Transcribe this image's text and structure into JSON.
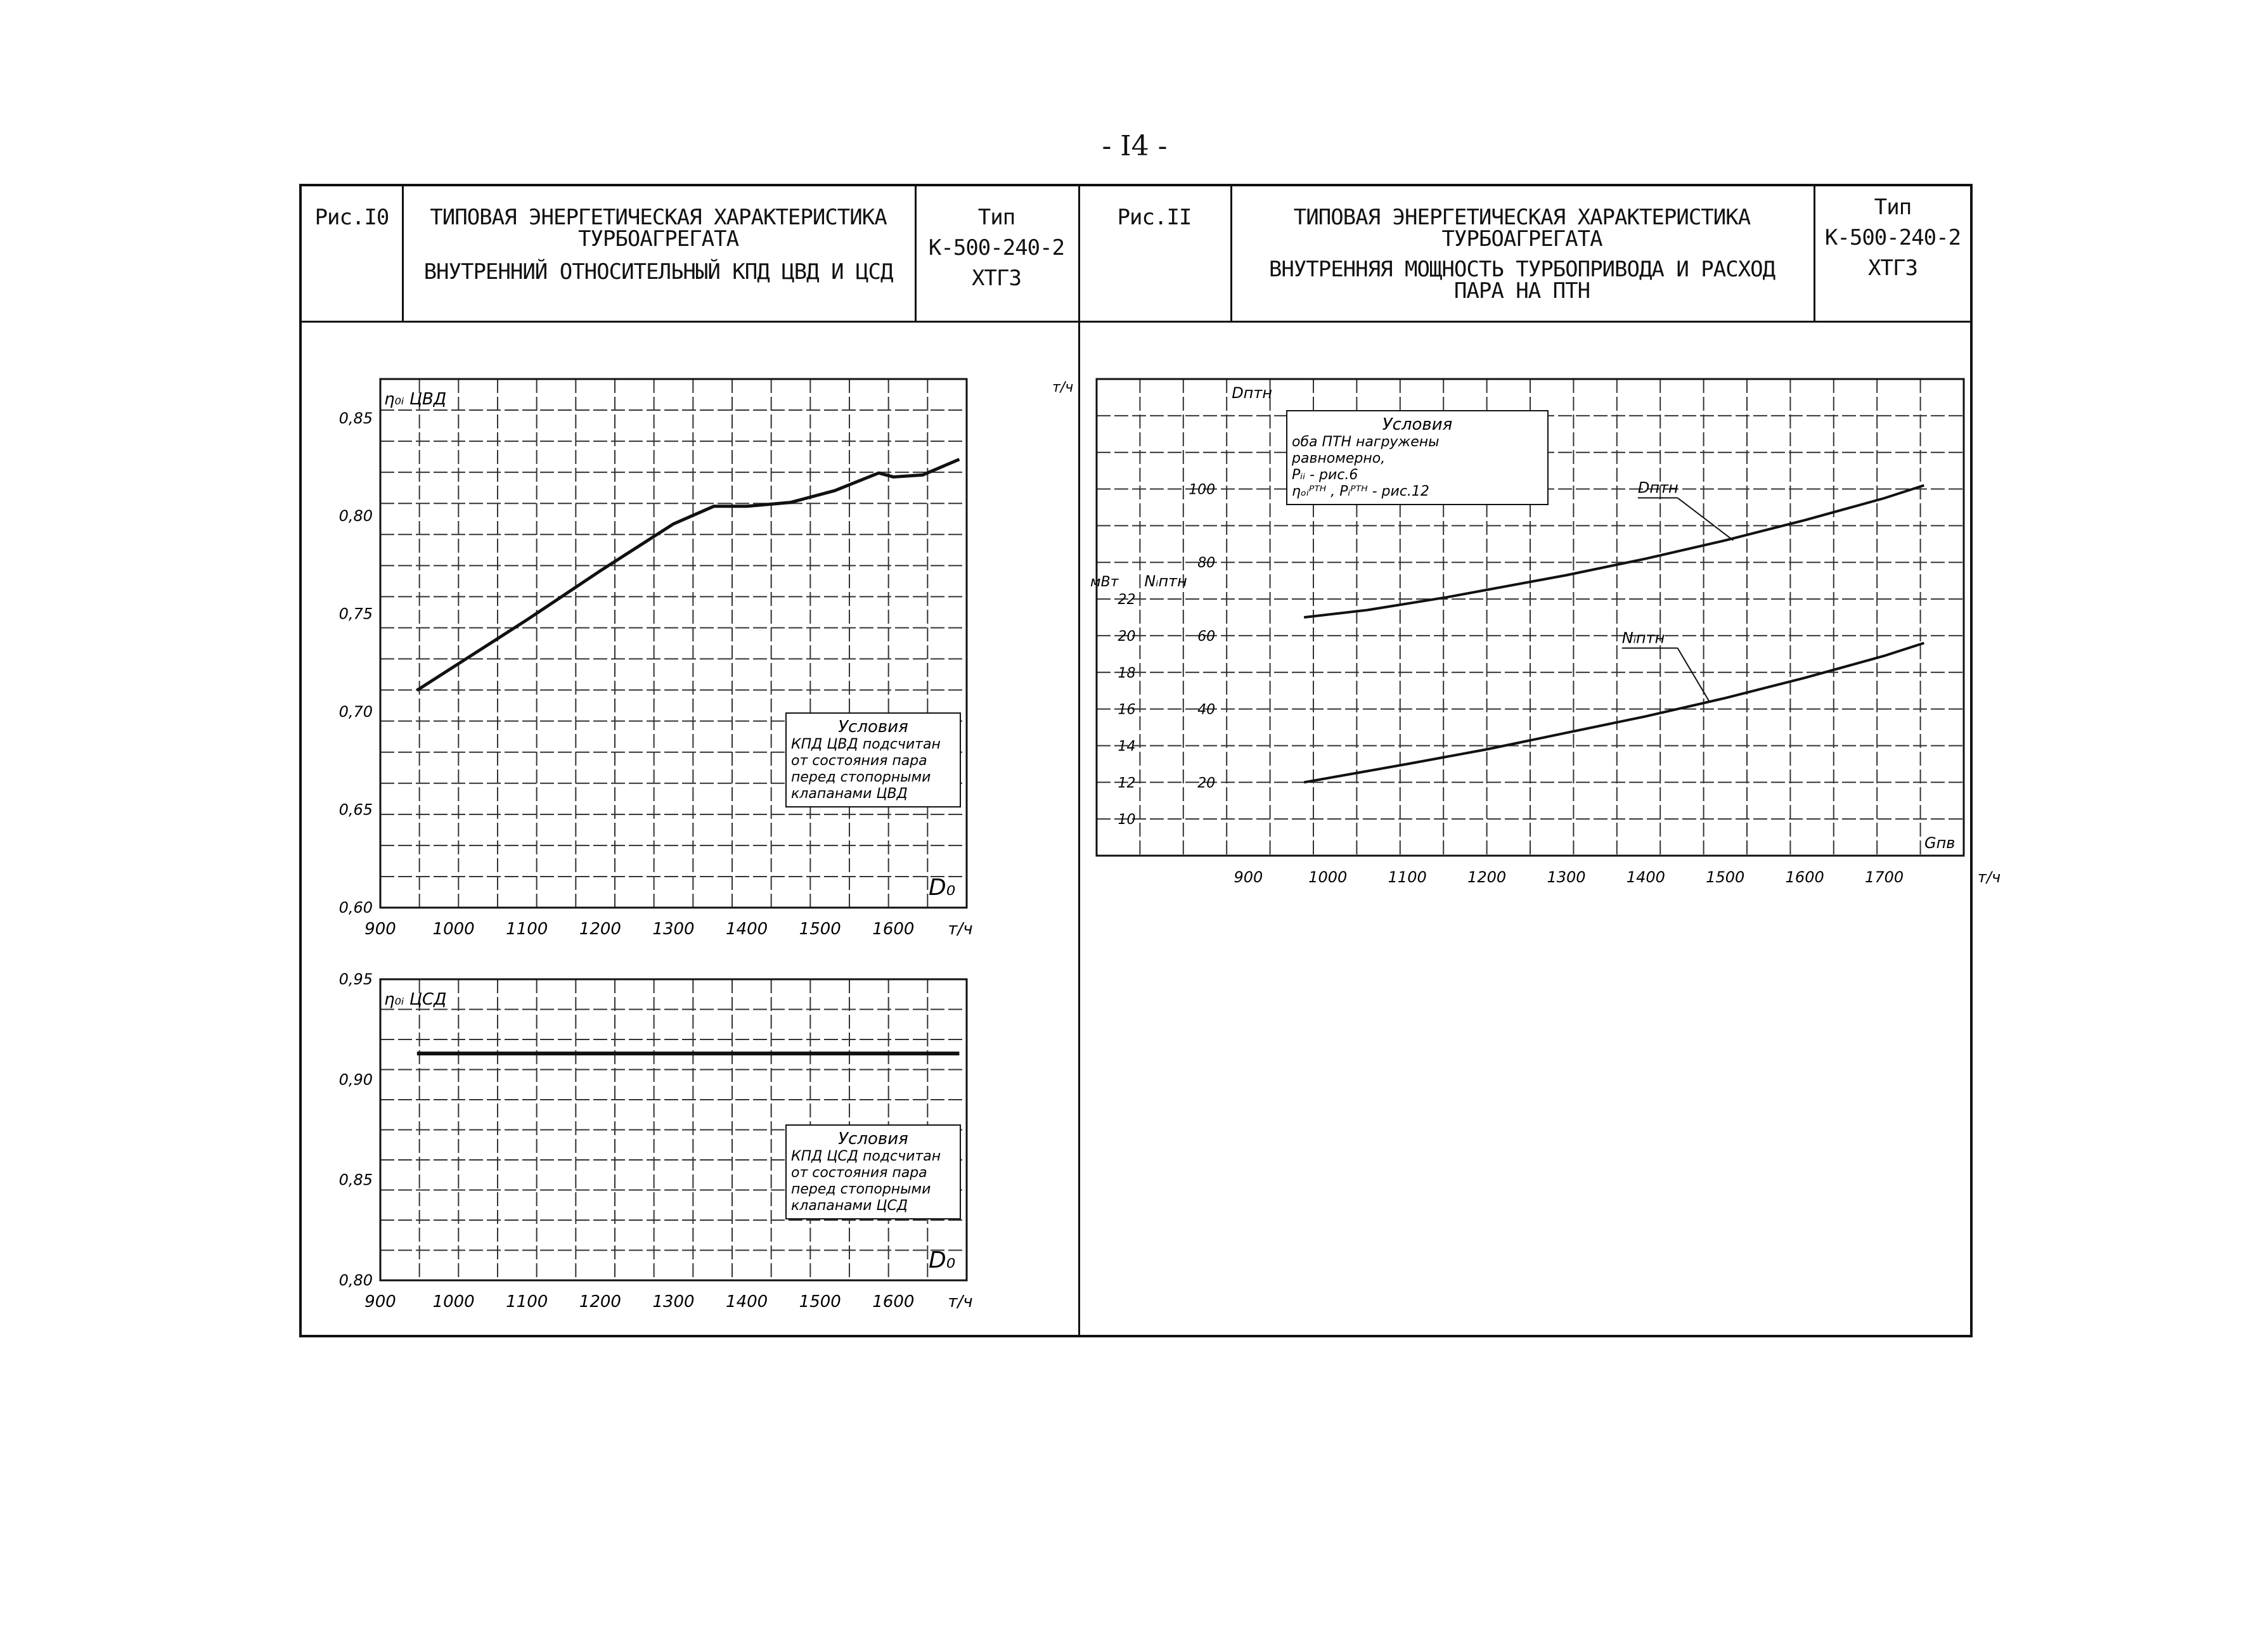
{
  "page_number": "- I4 -",
  "left_header": {
    "fig_label": "Рис.I0",
    "title_line1": "ТИПОВАЯ ЭНЕРГЕТИЧЕСКАЯ ХАРАКТЕРИСТИКА",
    "title_line2": "ТУРБОАГРЕГАТА",
    "subtitle": "ВНУТРЕННИЙ ОТНОСИТЕЛЬНЫЙ КПД ЦВД И ЦСД",
    "type_label": "Тип",
    "type_model": "К-500-240-2",
    "type_maker": "ХТГЗ"
  },
  "right_header": {
    "fig_label": "Рис.II",
    "title_line1": "ТИПОВАЯ ЭНЕРГЕТИЧЕСКАЯ ХАРАКТЕРИСТИКА",
    "title_line2": "ТУРБОАГРЕГАТА",
    "subtitle_line1": "ВНУТРЕННЯЯ МОЩНОСТЬ ТУРБОПРИВОДА И РАСХОД",
    "subtitle_line2": "ПАРА НА ПТН",
    "type_label": "Тип",
    "type_model": "К-500-240-2",
    "type_maker": "ХТГЗ"
  },
  "chart_data": [
    {
      "id": "cvd",
      "type": "line",
      "title": "",
      "xlabel": "D₀",
      "ylabel": "η₀ᵢ ЦВД",
      "x_unit": "т/ч",
      "xlim": [
        900,
        1700
      ],
      "ylim": [
        0.6,
        0.87
      ],
      "grid": true,
      "x_ticks": [
        "900",
        "1000",
        "1100",
        "1200",
        "1300",
        "1400",
        "1500",
        "1600",
        "т/ч"
      ],
      "y_ticks": [
        "0,60",
        "0,65",
        "0,70",
        "0,75",
        "0,80",
        "0,85"
      ],
      "note": [
        "Условия",
        "КПД ЦВД подсчитан",
        "от состояния пара",
        "перед стопорными",
        "клапанами ЦВД"
      ],
      "series": [
        {
          "x": [
            950,
            1000,
            1100,
            1200,
            1300,
            1355,
            1400,
            1460,
            1520,
            1580,
            1600,
            1640,
            1690
          ],
          "y": [
            0.711,
            0.723,
            0.747,
            0.772,
            0.796,
            0.805,
            0.805,
            0.807,
            0.813,
            0.822,
            0.82,
            0.821,
            0.829
          ]
        }
      ]
    },
    {
      "id": "csd",
      "type": "line",
      "title": "",
      "xlabel": "D₀",
      "ylabel": "η₀ᵢ ЦСД",
      "x_unit": "т/ч",
      "xlim": [
        900,
        1700
      ],
      "ylim": [
        0.8,
        0.95
      ],
      "grid": true,
      "x_ticks": [
        "900",
        "1000",
        "1100",
        "1200",
        "1300",
        "1400",
        "1500",
        "1600",
        "т/ч"
      ],
      "y_ticks": [
        "0,80",
        "0,85",
        "0,90",
        "0,95"
      ],
      "note": [
        "Условия",
        "КПД ЦСД подсчитан",
        "от состояния пара",
        "перед стопорными",
        "клапанами ЦСД"
      ],
      "series": [
        {
          "x": [
            950,
            1690
          ],
          "y": [
            0.913,
            0.913
          ]
        }
      ]
    },
    {
      "id": "ptn",
      "type": "line",
      "title": "",
      "xlabel": "Gпв",
      "x_unit": "т/ч",
      "xlim": [
        800,
        1800
      ],
      "grid": true,
      "x_ticks": [
        "900",
        "1000",
        "1100",
        "1200",
        "1300",
        "1400",
        "1500",
        "1600",
        "1700",
        "т/ч"
      ],
      "y_axis_D": {
        "label": "Dптн",
        "unit": "т/ч",
        "ticks": [
          "20",
          "40",
          "60",
          "80",
          "100"
        ]
      },
      "y_axis_N": {
        "label": "Nᵢптн",
        "unit": "мВт",
        "ticks": [
          "10",
          "12",
          "14",
          "16",
          "18",
          "20",
          "22"
        ]
      },
      "note": [
        "Условия",
        "оба ПТН нагружены",
        "равномерно,",
        "Pᵢᵢ - рис.6",
        "ηₒᵢᴾᵀᴴ , Pᵢᴾᵀᴴ - рис.12"
      ],
      "series": [
        {
          "name": "Dптн",
          "x": [
            970,
            1050,
            1150,
            1200,
            1300,
            1400,
            1500,
            1600,
            1700,
            1750
          ],
          "y": [
            65.0,
            67.0,
            70.5,
            72.5,
            76.5,
            81.0,
            86.0,
            91.5,
            97.5,
            101.0
          ]
        },
        {
          "name": "Nᵢптн",
          "x": [
            970,
            1100,
            1200,
            1300,
            1400,
            1500,
            1600,
            1700,
            1750
          ],
          "y": [
            12.0,
            13.0,
            13.8,
            14.7,
            15.6,
            16.6,
            17.7,
            18.9,
            19.6
          ]
        }
      ],
      "series_labels": [
        "Dптн",
        "Nᵢптн"
      ]
    }
  ]
}
